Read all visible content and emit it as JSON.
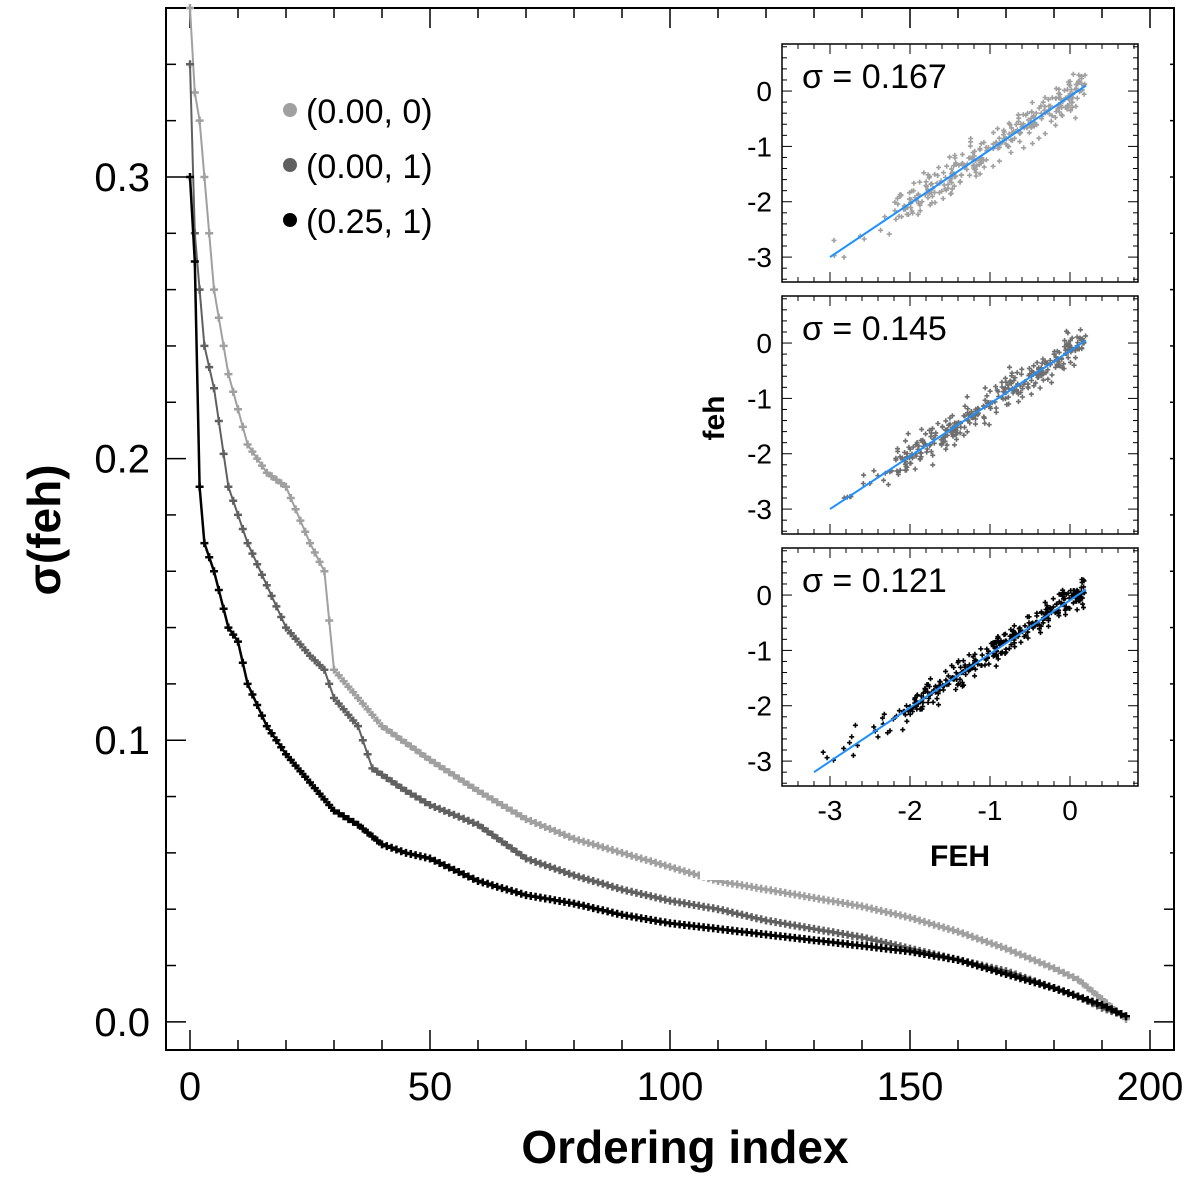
{
  "chart_data": [
    {
      "type": "line",
      "xlabel": "Ordering index",
      "ylabel": "σ(feh)",
      "xlim": [
        -5,
        205
      ],
      "ylim": [
        -0.01,
        0.36
      ],
      "xticks": [
        "0",
        "50",
        "100",
        "150",
        "200"
      ],
      "yticks": [
        "0.0",
        "0.1",
        "0.2",
        "0.3"
      ],
      "legend_position": "top-left",
      "series": [
        {
          "name": "(0.00, 0)",
          "color": "#a0a0a0",
          "x": [
            0,
            1,
            2,
            3,
            5,
            8,
            12,
            16,
            20,
            25,
            28,
            30,
            35,
            40,
            50,
            60,
            70,
            80,
            90,
            100,
            110,
            120,
            130,
            140,
            150,
            160,
            170,
            180,
            185,
            190,
            195
          ],
          "y": [
            0.36,
            0.33,
            0.32,
            0.3,
            0.26,
            0.23,
            0.205,
            0.195,
            0.19,
            0.17,
            0.16,
            0.125,
            0.115,
            0.105,
            0.093,
            0.082,
            0.072,
            0.065,
            0.06,
            0.055,
            0.05,
            0.047,
            0.044,
            0.041,
            0.037,
            0.032,
            0.026,
            0.019,
            0.015,
            0.008,
            0.001
          ]
        },
        {
          "name": "(0.00, 1)",
          "color": "#606060",
          "x": [
            0,
            1,
            2,
            3,
            5,
            8,
            12,
            16,
            20,
            25,
            28,
            30,
            35,
            38,
            45,
            50,
            60,
            70,
            80,
            90,
            100,
            110,
            120,
            130,
            140,
            150,
            160,
            170,
            180,
            185,
            190,
            195
          ],
          "y": [
            0.34,
            0.28,
            0.26,
            0.24,
            0.225,
            0.19,
            0.17,
            0.155,
            0.14,
            0.13,
            0.125,
            0.115,
            0.105,
            0.09,
            0.082,
            0.077,
            0.07,
            0.058,
            0.052,
            0.047,
            0.043,
            0.04,
            0.036,
            0.033,
            0.03,
            0.026,
            0.022,
            0.018,
            0.012,
            0.009,
            0.005,
            0.002
          ]
        },
        {
          "name": "(0.25, 1)",
          "color": "#000000",
          "x": [
            0,
            1,
            2,
            3,
            5,
            8,
            10,
            12,
            16,
            20,
            25,
            30,
            35,
            40,
            45,
            50,
            60,
            70,
            80,
            90,
            100,
            110,
            120,
            130,
            140,
            150,
            160,
            170,
            180,
            185,
            190,
            195
          ],
          "y": [
            0.3,
            0.27,
            0.19,
            0.17,
            0.16,
            0.14,
            0.135,
            0.12,
            0.105,
            0.095,
            0.085,
            0.075,
            0.07,
            0.063,
            0.06,
            0.058,
            0.05,
            0.045,
            0.042,
            0.038,
            0.035,
            0.033,
            0.031,
            0.029,
            0.027,
            0.025,
            0.022,
            0.017,
            0.012,
            0.009,
            0.006,
            0.002
          ]
        }
      ]
    },
    {
      "type": "scatter",
      "annotation": "σ = 0.167",
      "point_color": "#a0a0a0",
      "fit_color": "#1e90ff",
      "xlim": [
        -3.6,
        0.85
      ],
      "ylim": [
        -3.45,
        0.85
      ],
      "xticks": [
        "-3",
        "-2",
        "-1",
        "0"
      ],
      "yticks": [
        "0",
        "-1",
        "-2",
        "-3"
      ],
      "fit_line": {
        "x": [
          -3.0,
          0.2
        ],
        "y": [
          -3.0,
          0.1
        ]
      },
      "x_range": [
        -3.0,
        0.2
      ],
      "scatter_sd": 0.167,
      "point_count": 330
    },
    {
      "type": "scatter",
      "annotation": "σ = 0.145",
      "point_color": "#6e6e6e",
      "fit_color": "#1e90ff",
      "xlim": [
        -3.6,
        0.85
      ],
      "ylim": [
        -3.45,
        0.85
      ],
      "xticks": [
        "-3",
        "-2",
        "-1",
        "0"
      ],
      "yticks": [
        "0",
        "-1",
        "-2",
        "-3"
      ],
      "ylabel": "feh",
      "fit_line": {
        "x": [
          -3.0,
          0.2
        ],
        "y": [
          -3.0,
          0.05
        ]
      },
      "x_range": [
        -3.0,
        0.2
      ],
      "scatter_sd": 0.145,
      "point_count": 330
    },
    {
      "type": "scatter",
      "annotation": "σ = 0.121",
      "point_color": "#000000",
      "fit_color": "#1e90ff",
      "xlim": [
        -3.6,
        0.85
      ],
      "ylim": [
        -3.45,
        0.85
      ],
      "xticks": [
        "-3",
        "-2",
        "-1",
        "0"
      ],
      "yticks": [
        "0",
        "-1",
        "-2",
        "-3"
      ],
      "xlabel": "FEH",
      "fit_line": {
        "x": [
          -3.2,
          0.2
        ],
        "y": [
          -3.2,
          0.1
        ]
      },
      "x_range": [
        -3.2,
        0.2
      ],
      "scatter_sd": 0.121,
      "point_count": 330
    }
  ]
}
